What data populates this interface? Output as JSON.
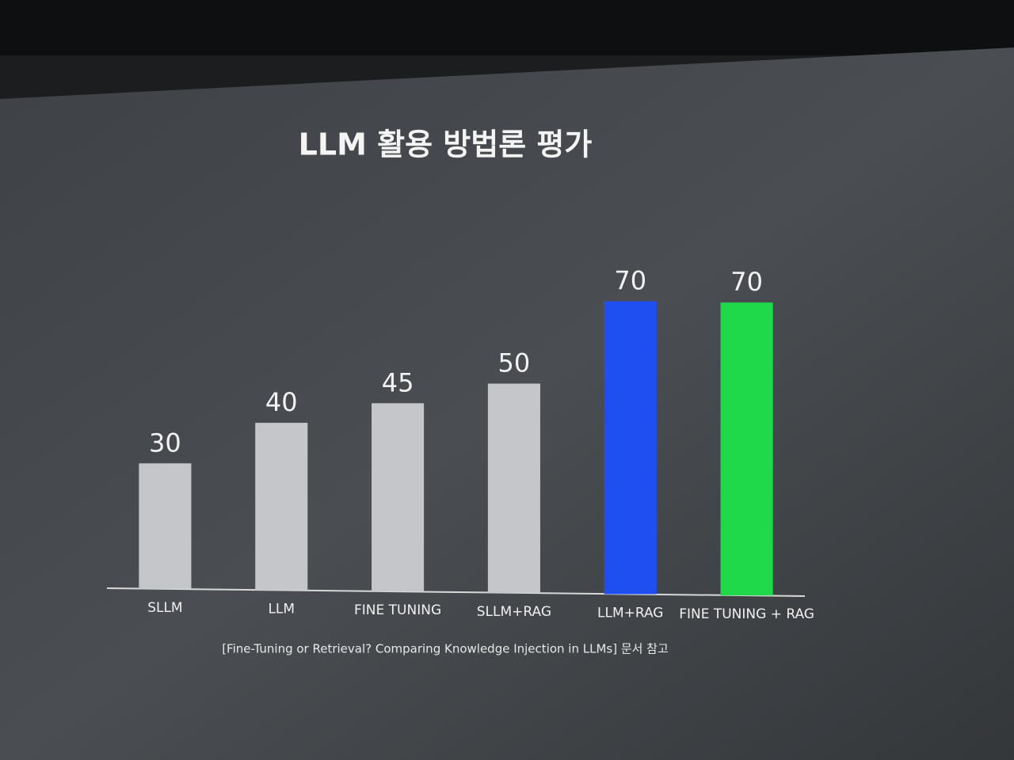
{
  "chart_data": {
    "type": "bar",
    "title": "LLM 활용 방법론 평가",
    "categories": [
      "SLLM",
      "LLM",
      "FINE TUNING",
      "SLLM+RAG",
      "LLM+RAG",
      "FINE TUNING + RAG"
    ],
    "values": [
      30,
      40,
      45,
      50,
      70,
      70
    ],
    "colors": [
      "#c4c6c9",
      "#c4c6c9",
      "#c4c6c9",
      "#c4c6c9",
      "#1f4ff0",
      "#20d94a"
    ],
    "source": "[Fine-Tuning or Retrieval? Comparing Knowledge Injection in LLMs] 문서 참고"
  }
}
